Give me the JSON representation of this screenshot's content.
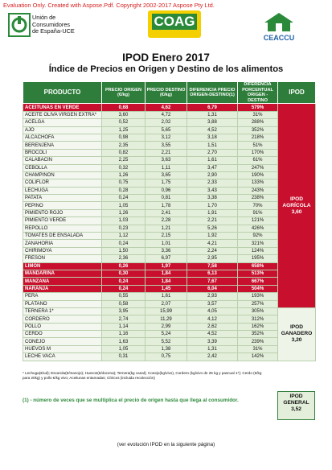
{
  "watermark": "Evaluation Only. Created with Aspose.Pdf. Copyright 2002-2017 Aspose Pty Ltd.",
  "logos": {
    "uce": [
      "Unión de",
      "Consumidores",
      "de España-UCE"
    ],
    "coag": "COAG",
    "ceaccu": "CEACCU"
  },
  "header": {
    "title": "IPOD Enero 2017",
    "subtitle": "Índice de Precios en Origen y Destino de los alimentos"
  },
  "table": {
    "columns": [
      "PRODUCTO",
      "PRECIO ORIGEN (€/kg)",
      "PRECIO DESTINO (€/kg)",
      "DIFERENCIA PRECIO ORIGEN-DESTINO(1)",
      "DIFERENCIA PORCENTUAL ORIGEN - DESTINO",
      "IPOD"
    ],
    "groups": [
      {
        "label": "IPOD AGRÍCOLA",
        "value": "3,60",
        "rows": [
          {
            "cells": [
              "ACEITUNAS EN VERDE",
              "0,68",
              "4,62",
              "6,79",
              "579%"
            ],
            "highlight": true
          },
          {
            "cells": [
              "ACEITE OLIVA VIRGEN EXTRA*",
              "3,60",
              "4,72",
              "1,31",
              "31%"
            ],
            "highlight": false
          },
          {
            "cells": [
              "ACELGA",
              "0,52",
              "2,02",
              "3,88",
              "288%"
            ],
            "highlight": false
          },
          {
            "cells": [
              "AJO",
              "1,25",
              "5,65",
              "4,52",
              "352%"
            ],
            "highlight": false
          },
          {
            "cells": [
              "ALCACHOFA",
              "0,98",
              "3,12",
              "3,18",
              "218%"
            ],
            "highlight": false
          },
          {
            "cells": [
              "BERENJENA",
              "2,35",
              "3,55",
              "1,51",
              "51%"
            ],
            "highlight": false
          },
          {
            "cells": [
              "BROCOLI",
              "0,82",
              "2,21",
              "2,70",
              "170%"
            ],
            "highlight": false
          },
          {
            "cells": [
              "CALABACIN",
              "2,25",
              "3,63",
              "1,61",
              "61%"
            ],
            "highlight": false
          },
          {
            "cells": [
              "CEBOLLA",
              "0,32",
              "1,11",
              "3,47",
              "247%"
            ],
            "highlight": false
          },
          {
            "cells": [
              "CHAMPIÑÓN",
              "1,26",
              "3,65",
              "2,90",
              "190%"
            ],
            "highlight": false
          },
          {
            "cells": [
              "COLIFLOR",
              "0,75",
              "1,75",
              "2,33",
              "133%"
            ],
            "highlight": false
          },
          {
            "cells": [
              "LECHUGA",
              "0,28",
              "0,96",
              "3,43",
              "243%"
            ],
            "highlight": false
          },
          {
            "cells": [
              "PATATA",
              "0,24",
              "0,81",
              "3,38",
              "238%"
            ],
            "highlight": false
          },
          {
            "cells": [
              "PEPINO",
              "1,05",
              "1,78",
              "1,70",
              "70%"
            ],
            "highlight": false
          },
          {
            "cells": [
              "PIMIENTO ROJO",
              "1,26",
              "2,41",
              "1,91",
              "91%"
            ],
            "highlight": false
          },
          {
            "cells": [
              "PIMIENTO VERDE",
              "1,03",
              "2,28",
              "2,21",
              "121%"
            ],
            "highlight": false
          },
          {
            "cells": [
              "REPOLLO",
              "0,23",
              "1,21",
              "5,26",
              "426%"
            ],
            "highlight": false
          },
          {
            "cells": [
              "TOMATES DE ENSALADA",
              "1,12",
              "2,15",
              "1,92",
              "92%"
            ],
            "highlight": false
          },
          {
            "cells": [
              "ZANAHORIA",
              "0,24",
              "1,01",
              "4,21",
              "321%"
            ],
            "highlight": false
          },
          {
            "cells": [
              "CHIRIMOYA",
              "1,50",
              "3,36",
              "2,24",
              "124%"
            ],
            "highlight": false
          },
          {
            "cells": [
              "FRESÓN",
              "2,36",
              "6,97",
              "2,95",
              "195%"
            ],
            "highlight": false
          },
          {
            "cells": [
              "LIMÓN",
              "0,26",
              "1,97",
              "7,58",
              "658%"
            ],
            "highlight": true
          },
          {
            "cells": [
              "MANDARINA",
              "0,30",
              "1,84",
              "6,13",
              "513%"
            ],
            "highlight": true
          },
          {
            "cells": [
              "MANZANA",
              "0,24",
              "1,84",
              "7,67",
              "667%"
            ],
            "highlight": true
          },
          {
            "cells": [
              "NARANJA",
              "0,24",
              "1,45",
              "6,04",
              "504%"
            ],
            "highlight": true
          },
          {
            "cells": [
              "PERA",
              "0,55",
              "1,61",
              "2,93",
              "193%"
            ],
            "highlight": false
          },
          {
            "cells": [
              "PLÁTANO",
              "0,58",
              "2,07",
              "3,57",
              "257%"
            ],
            "highlight": false
          }
        ]
      },
      {
        "label": "IPOD GANADERO",
        "value": "3,20",
        "rows": [
          {
            "cells": [
              "TERNERA 1*",
              "3,95",
              "15,99",
              "4,05",
              "305%"
            ],
            "highlight": false
          },
          {
            "cells": [
              "CORDERO",
              "2,74",
              "11,29",
              "4,12",
              "312%"
            ],
            "highlight": false
          },
          {
            "cells": [
              "POLLO",
              "1,14",
              "2,99",
              "2,62",
              "162%"
            ],
            "highlight": false
          },
          {
            "cells": [
              "CERDO",
              "1,16",
              "5,24",
              "4,52",
              "352%"
            ],
            "highlight": false
          },
          {
            "cells": [
              "CONEJO",
              "1,63",
              "5,52",
              "3,39",
              "239%"
            ],
            "highlight": false
          },
          {
            "cells": [
              "HUEVOS M",
              "1,05",
              "1,38",
              "1,31",
              "31%"
            ],
            "highlight": false
          },
          {
            "cells": [
              "LECHE VACA",
              "0,31",
              "0,75",
              "2,42",
              "142%"
            ],
            "highlight": false
          }
        ]
      }
    ]
  },
  "general": {
    "label": "IPOD GENERAL",
    "value": "3,52"
  },
  "footnote": "* Lechuga(€/ud); Escarola(€/manojo); Huevos(€/docena); Ternera(kg canal); Conejo(kg/vivo), Cordero (kg/vivo de 25 kg y pascual 1*); Cerdo (€/kg para 20kg) y pollo €/kg vivo; Aceitunas entamadas; Cítricos (incluida recolección)",
  "note": "(1) - número de veces que se multiplica el precio de origen hasta que llega al consumidor.",
  "next": "(ver evolución IPOD en la siguiente página)"
}
